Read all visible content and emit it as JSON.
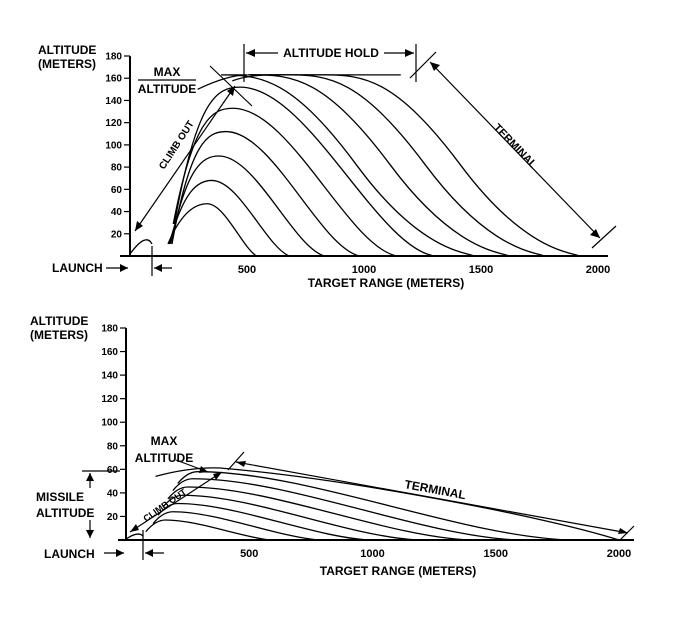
{
  "chart_data": [
    {
      "type": "line",
      "ylabel": [
        "ALTITUDE",
        "(METERS)"
      ],
      "xlabel": "TARGET RANGE (METERS)",
      "yticks": [
        20,
        40,
        60,
        80,
        100,
        120,
        140,
        160,
        180
      ],
      "xticks": [
        500,
        1000,
        1500,
        2000
      ],
      "xlim": [
        0,
        2000
      ],
      "ylim": [
        0,
        180
      ],
      "labels": {
        "launch": "LAUNCH",
        "climb_out": "CLIMB OUT",
        "max_altitude": [
          "MAX",
          "ALTITUDE"
        ],
        "altitude_hold": "ALTITUDE HOLD",
        "terminal": "TERMINAL"
      },
      "envelope": {
        "max_altitude": 163,
        "hold_start": 480,
        "hold_end": 1200,
        "terminal_end": 2000
      },
      "series": [
        {
          "peak_x": 330,
          "peak_y": 47,
          "end_x": 540
        },
        {
          "peak_x": 350,
          "peak_y": 68,
          "end_x": 680
        },
        {
          "peak_x": 380,
          "peak_y": 90,
          "end_x": 830
        },
        {
          "peak_x": 410,
          "peak_y": 112,
          "end_x": 980
        },
        {
          "peak_x": 440,
          "peak_y": 133,
          "end_x": 1140
        },
        {
          "peak_x": 470,
          "peak_y": 152,
          "end_x": 1300
        },
        {
          "peak_x": 560,
          "peak_y": 163,
          "end_x": 1470
        },
        {
          "peak_x": 700,
          "peak_y": 163,
          "end_x": 1620
        },
        {
          "peak_x": 850,
          "peak_y": 163,
          "end_x": 1770
        },
        {
          "peak_x": 1000,
          "peak_y": 163,
          "end_x": 1920
        }
      ]
    },
    {
      "type": "line",
      "ylabel": [
        "ALTITUDE",
        "(METERS)"
      ],
      "xlabel": "TARGET RANGE (METERS)",
      "yticks": [
        20,
        40,
        60,
        80,
        100,
        120,
        140,
        160,
        180
      ],
      "xticks": [
        500,
        1000,
        1500,
        2000
      ],
      "xlim": [
        0,
        2000
      ],
      "ylim": [
        0,
        180
      ],
      "labels": {
        "launch": "LAUNCH",
        "climb_out": "CLIMB OUT",
        "max_altitude": [
          "MAX",
          "ALTITUDE"
        ],
        "missile_altitude": [
          "MISSILE",
          "ALTITUDE"
        ],
        "terminal": "TERMINAL"
      },
      "envelope": {
        "max_altitude": 62,
        "climb_end_x": 300,
        "terminal_end": 2000
      },
      "series": [
        {
          "peak_x": 160,
          "peak_y": 17,
          "end_x": 580
        },
        {
          "peak_x": 190,
          "peak_y": 24,
          "end_x": 780
        },
        {
          "peak_x": 210,
          "peak_y": 31,
          "end_x": 980
        },
        {
          "peak_x": 230,
          "peak_y": 38,
          "end_x": 1180
        },
        {
          "peak_x": 250,
          "peak_y": 45,
          "end_x": 1390
        },
        {
          "peak_x": 270,
          "peak_y": 52,
          "end_x": 1590
        },
        {
          "peak_x": 290,
          "peak_y": 58,
          "end_x": 1800
        }
      ]
    }
  ]
}
